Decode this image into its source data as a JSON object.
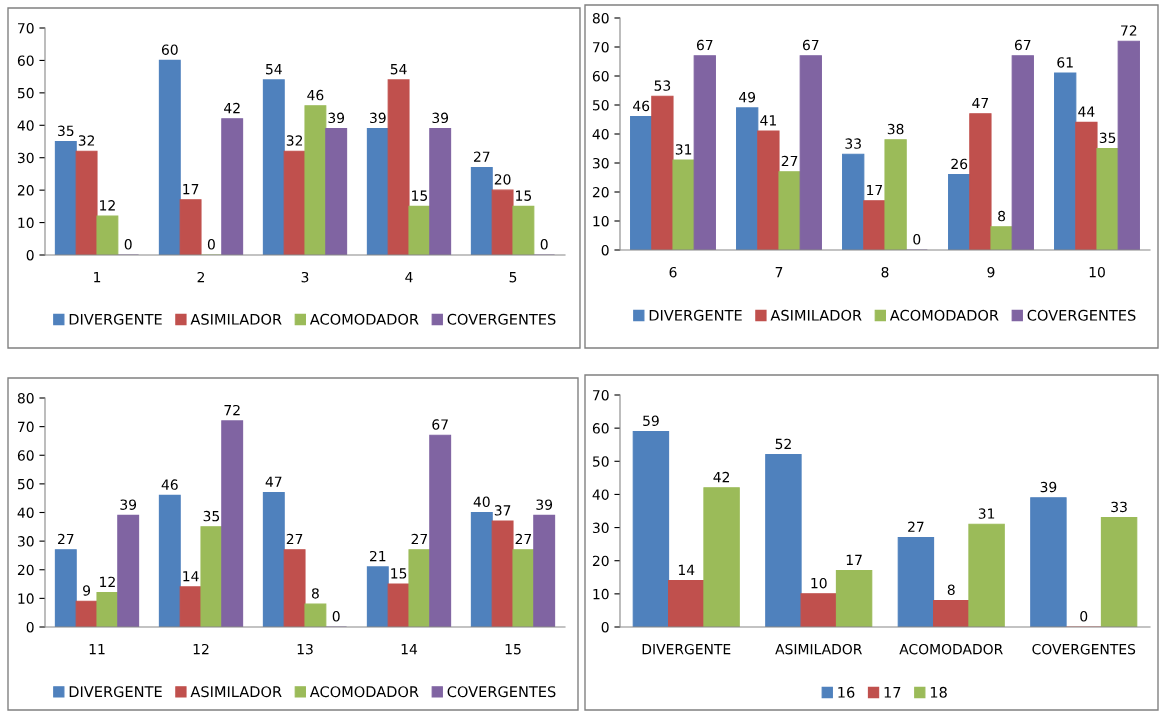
{
  "chart_data": [
    {
      "type": "bar",
      "categories": [
        "1",
        "2",
        "3",
        "4",
        "5"
      ],
      "ylim": [
        0,
        70
      ],
      "yticks": [
        0,
        10,
        20,
        30,
        40,
        50,
        60,
        70
      ],
      "data_labels": true,
      "legend": "bottom",
      "grid": false,
      "series": [
        {
          "name": "DIVERGENTE",
          "color": "#4f81bd",
          "values": [
            35,
            60,
            54,
            39,
            27
          ]
        },
        {
          "name": "ASIMILADOR",
          "color": "#c0504d",
          "values": [
            32,
            17,
            32,
            54,
            20
          ]
        },
        {
          "name": "ACOMODADOR",
          "color": "#9bbb59",
          "values": [
            12,
            0,
            46,
            15,
            15
          ]
        },
        {
          "name": "COVERGENTES",
          "color": "#8064a2",
          "values": [
            0,
            42,
            39,
            39,
            0
          ]
        }
      ]
    },
    {
      "type": "bar",
      "categories": [
        "6",
        "7",
        "8",
        "9",
        "10"
      ],
      "ylim": [
        0,
        80
      ],
      "yticks": [
        0,
        10,
        20,
        30,
        40,
        50,
        60,
        70,
        80
      ],
      "data_labels": true,
      "legend": "bottom",
      "grid": false,
      "series": [
        {
          "name": "DIVERGENTE",
          "color": "#4f81bd",
          "values": [
            46,
            49,
            33,
            26,
            61
          ]
        },
        {
          "name": "ASIMILADOR",
          "color": "#c0504d",
          "values": [
            53,
            41,
            17,
            47,
            44
          ]
        },
        {
          "name": "ACOMODADOR",
          "color": "#9bbb59",
          "values": [
            31,
            27,
            38,
            8,
            35
          ]
        },
        {
          "name": "COVERGENTES",
          "color": "#8064a2",
          "values": [
            67,
            67,
            0,
            67,
            72
          ]
        }
      ]
    },
    {
      "type": "bar",
      "categories": [
        "11",
        "12",
        "13",
        "14",
        "15"
      ],
      "ylim": [
        0,
        80
      ],
      "yticks": [
        0,
        10,
        20,
        30,
        40,
        50,
        60,
        70,
        80
      ],
      "data_labels": true,
      "legend": "bottom",
      "grid": false,
      "series": [
        {
          "name": "DIVERGENTE",
          "color": "#4f81bd",
          "values": [
            27,
            46,
            47,
            21,
            40
          ]
        },
        {
          "name": "ASIMILADOR",
          "color": "#c0504d",
          "values": [
            9,
            14,
            27,
            15,
            37
          ]
        },
        {
          "name": "ACOMODADOR",
          "color": "#9bbb59",
          "values": [
            12,
            35,
            8,
            27,
            27
          ]
        },
        {
          "name": "COVERGENTES",
          "color": "#8064a2",
          "values": [
            39,
            72,
            0,
            67,
            39
          ]
        }
      ]
    },
    {
      "type": "bar",
      "categories": [
        "DIVERGENTE",
        "ASIMILADOR",
        "ACOMODADOR",
        "COVERGENTES"
      ],
      "ylim": [
        0,
        70
      ],
      "yticks": [
        0,
        10,
        20,
        30,
        40,
        50,
        60,
        70
      ],
      "data_labels": true,
      "legend": "bottom",
      "grid": false,
      "series": [
        {
          "name": "16",
          "color": "#4f81bd",
          "values": [
            59,
            52,
            27,
            39
          ]
        },
        {
          "name": "17",
          "color": "#c0504d",
          "values": [
            14,
            10,
            8,
            0
          ]
        },
        {
          "name": "18",
          "color": "#9bbb59",
          "values": [
            42,
            17,
            31,
            33
          ]
        }
      ]
    }
  ]
}
